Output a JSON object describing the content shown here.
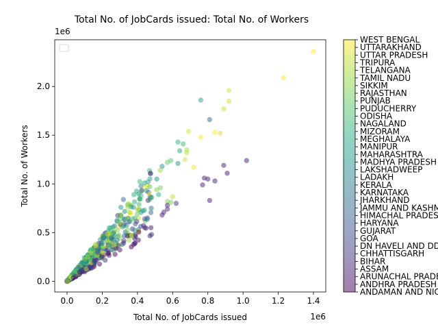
{
  "chart_data": {
    "type": "scatter",
    "title": "Total No. of JobCards issued: Total No. of Workers",
    "xlabel": "Total No. of JobCards issued",
    "ylabel": "Total No. of Workers",
    "x_scale_label": "1e6",
    "y_scale_label": "1e6",
    "xlim": [
      -0.07,
      1.47
    ],
    "ylim": [
      -0.11,
      2.48
    ],
    "x_ticks": [
      0.0,
      0.2,
      0.4,
      0.6,
      0.8,
      1.0,
      1.2,
      1.4
    ],
    "x_tick_labels": [
      "0.0",
      "0.2",
      "0.4",
      "0.6",
      "0.8",
      "1.0",
      "1.2",
      "1.4"
    ],
    "y_ticks": [
      0.0,
      0.5,
      1.0,
      1.5,
      2.0
    ],
    "y_tick_labels": [
      "0.0",
      "0.5",
      "1.0",
      "1.5",
      "2.0"
    ],
    "grid": false,
    "legend": "top-left (empty box)",
    "colormap": "viridis",
    "point_alpha": 0.5,
    "colorbar_labels": [
      "ANDAMAN AND NICOBAR",
      "ANDHRA PRADESH",
      "ARUNACHAL PRADESH",
      "ASSAM",
      "BIHAR",
      "CHHATTISGARH",
      "DN HAVELI AND DD",
      "GOA",
      "GUJARAT",
      "HARYANA",
      "HIMACHAL PRADESH",
      "JAMMU AND KASHMIR",
      "JHARKHAND",
      "KARNATAKA",
      "KERALA",
      "LADAKH",
      "LAKSHADWEEP",
      "MADHYA PRADESH",
      "MAHARASHTRA",
      "MANIPUR",
      "MEGHALAYA",
      "MIZORAM",
      "NAGALAND",
      "ODISHA",
      "PUDUCHERRY",
      "PUNJAB",
      "RAJASTHAN",
      "SIKKIM",
      "TAMIL NADU",
      "TELANGANA",
      "TRIPURA",
      "UTTAR PRADESH",
      "UTTARAKHAND",
      "WEST BENGAL"
    ],
    "outliers": [
      {
        "x": 1.4,
        "y": 2.36,
        "c": 33
      },
      {
        "x": 1.23,
        "y": 2.09,
        "c": 33
      },
      {
        "x": 0.92,
        "y": 1.96,
        "c": 31
      },
      {
        "x": 0.92,
        "y": 1.85,
        "c": 31
      },
      {
        "x": 0.89,
        "y": 1.77,
        "c": 31
      },
      {
        "x": 0.76,
        "y": 1.86,
        "c": 19
      },
      {
        "x": 0.81,
        "y": 1.66,
        "c": 12
      },
      {
        "x": 0.84,
        "y": 1.53,
        "c": 33
      },
      {
        "x": 0.87,
        "y": 1.52,
        "c": 31
      },
      {
        "x": 0.69,
        "y": 1.54,
        "c": 31
      },
      {
        "x": 0.76,
        "y": 1.48,
        "c": 33
      },
      {
        "x": 0.63,
        "y": 1.43,
        "c": 21
      },
      {
        "x": 0.66,
        "y": 1.41,
        "c": 22
      },
      {
        "x": 0.64,
        "y": 1.34,
        "c": 19
      },
      {
        "x": 0.68,
        "y": 1.35,
        "c": 29
      },
      {
        "x": 0.68,
        "y": 1.32,
        "c": 30
      },
      {
        "x": 0.67,
        "y": 1.25,
        "c": 31
      },
      {
        "x": 0.63,
        "y": 1.21,
        "c": 18
      },
      {
        "x": 0.72,
        "y": 1.17,
        "c": 33
      },
      {
        "x": 0.54,
        "y": 1.18,
        "c": 17
      },
      {
        "x": 0.51,
        "y": 1.05,
        "c": 18
      },
      {
        "x": 0.53,
        "y": 1.14,
        "c": 28
      },
      {
        "x": 0.59,
        "y": 1.24,
        "c": 24
      },
      {
        "x": 0.57,
        "y": 1.22,
        "c": 25
      },
      {
        "x": 0.46,
        "y": 1.02,
        "c": 20
      },
      {
        "x": 0.44,
        "y": 1.01,
        "c": 19
      },
      {
        "x": 0.47,
        "y": 0.97,
        "c": 24
      },
      {
        "x": 0.51,
        "y": 0.94,
        "c": 27
      },
      {
        "x": 0.53,
        "y": 0.96,
        "c": 26
      },
      {
        "x": 0.48,
        "y": 0.86,
        "c": 23
      },
      {
        "x": 0.52,
        "y": 0.89,
        "c": 21
      },
      {
        "x": 0.6,
        "y": 0.87,
        "c": 30
      },
      {
        "x": 0.62,
        "y": 0.8,
        "c": 5
      },
      {
        "x": 0.57,
        "y": 0.82,
        "c": 27
      },
      {
        "x": 0.57,
        "y": 0.78,
        "c": 3
      },
      {
        "x": 0.59,
        "y": 0.81,
        "c": 26
      },
      {
        "x": 1.02,
        "y": 1.24,
        "c": 3
      },
      {
        "x": 0.89,
        "y": 1.19,
        "c": 3
      },
      {
        "x": 0.91,
        "y": 1.11,
        "c": 3
      },
      {
        "x": 0.78,
        "y": 1.06,
        "c": 3
      },
      {
        "x": 0.8,
        "y": 1.05,
        "c": 3
      },
      {
        "x": 0.84,
        "y": 1.03,
        "c": 3
      },
      {
        "x": 0.77,
        "y": 0.99,
        "c": 3
      },
      {
        "x": 0.81,
        "y": 0.83,
        "c": 3
      },
      {
        "x": 0.57,
        "y": 0.74,
        "c": 4
      },
      {
        "x": 0.55,
        "y": 0.71,
        "c": 4
      },
      {
        "x": 0.54,
        "y": 0.68,
        "c": 3
      },
      {
        "x": 0.46,
        "y": 0.83,
        "c": 5
      },
      {
        "x": 0.32,
        "y": 0.84,
        "c": 12
      },
      {
        "x": 0.38,
        "y": 0.89,
        "c": 20
      },
      {
        "x": 0.42,
        "y": 0.88,
        "c": 22
      }
    ],
    "bulk_note": "dense cloud of several hundred district points lying between y = 1.1x and y = 2.5x for x below 0.5 (values in millions)"
  }
}
